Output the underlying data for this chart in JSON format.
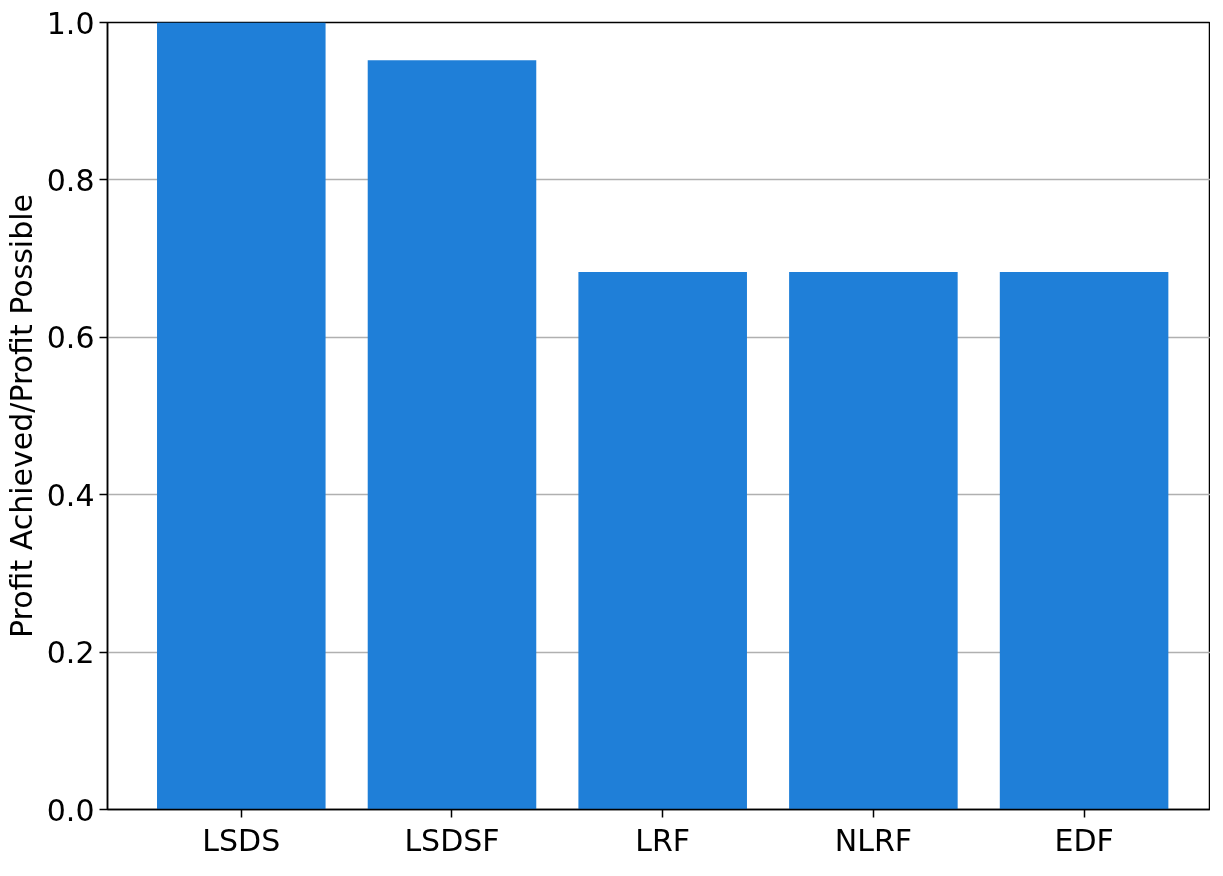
{
  "chart_data": {
    "type": "bar",
    "ylabel": "Profit Achieved/Profit Possible",
    "categories": [
      "LSDS",
      "LSDSF",
      "LRF",
      "NLRF",
      "EDF"
    ],
    "values": [
      1.0,
      0.952,
      0.683,
      0.683,
      0.683
    ],
    "color": "#1f7fd8",
    "ylim": [
      0,
      1.0
    ],
    "yticks": [
      {
        "value": 0,
        "label": "0.0"
      },
      {
        "value": 0.2,
        "label": "0.2"
      },
      {
        "value": 0.4,
        "label": "0.4"
      },
      {
        "value": 0.6,
        "label": "0.6"
      },
      {
        "value": 0.8,
        "label": "0.8"
      },
      {
        "value": 1.0,
        "label": "1.0"
      }
    ],
    "grid": "y"
  }
}
